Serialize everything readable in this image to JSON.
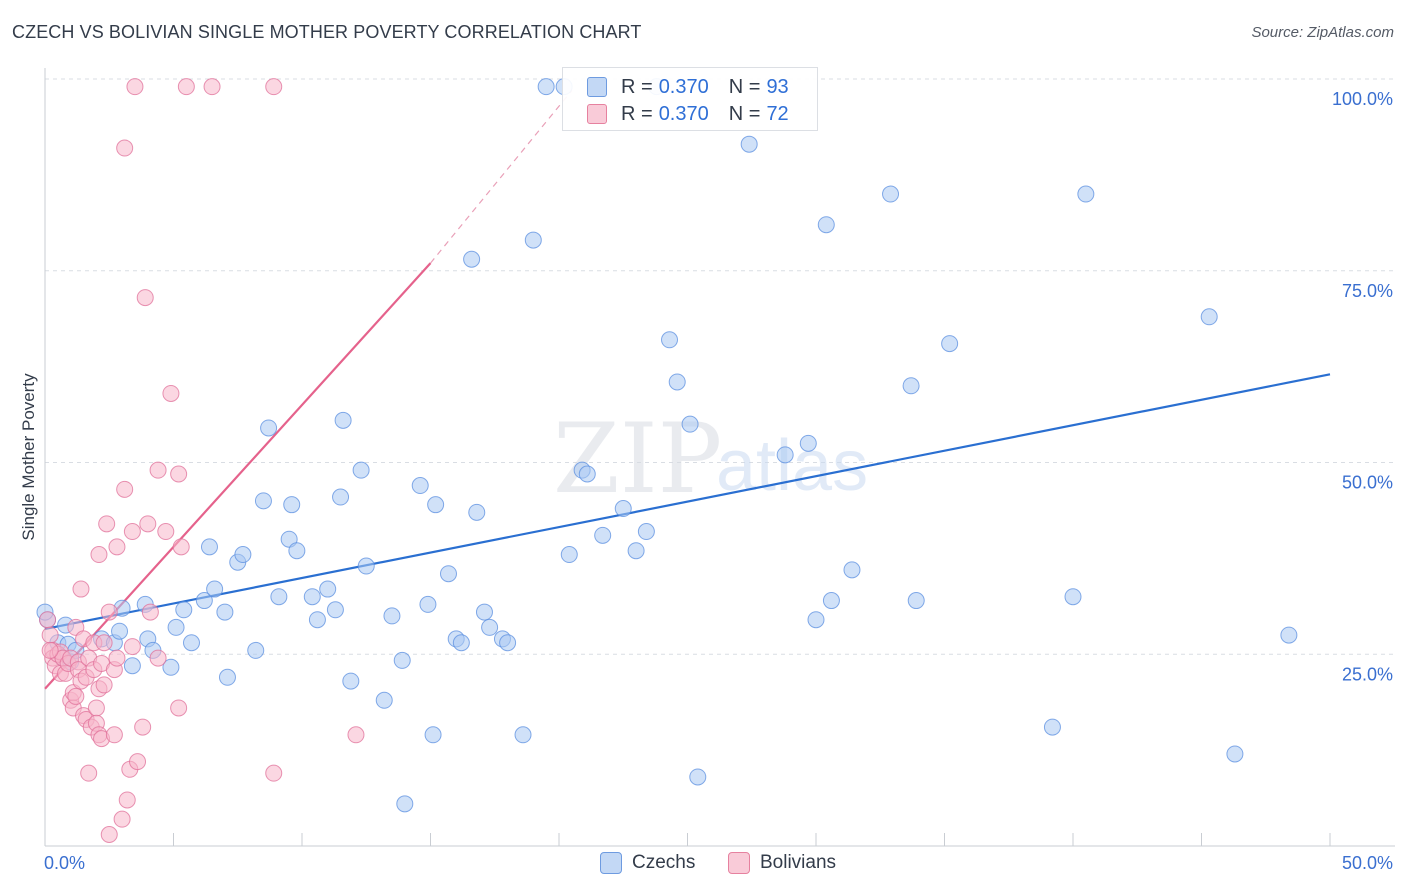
{
  "header": {
    "title": "CZECH VS BOLIVIAN SINGLE MOTHER POVERTY CORRELATION CHART",
    "source": "Source: ZipAtlas.com"
  },
  "watermark": {
    "zip": "ZIP",
    "atlas": "atlas"
  },
  "legend_top": {
    "rows": [
      {
        "r_label": "R =",
        "r_value": "0.370",
        "n_label": "N =",
        "n_value": "93",
        "color": "#a9c8f2"
      },
      {
        "r_label": "R =",
        "r_value": "0.370",
        "n_label": "N =",
        "n_value": "72",
        "color": "#f7b7ca"
      }
    ]
  },
  "legend_bottom": {
    "czechs": "Czechs",
    "bolivians": "Bolivians"
  },
  "chart_data": {
    "type": "scatter",
    "title": "CZECH VS BOLIVIAN SINGLE MOTHER POVERTY CORRELATION CHART",
    "xlabel": "",
    "ylabel": "Single Mother Poverty",
    "xlim": [
      0,
      50
    ],
    "ylim": [
      0,
      100
    ],
    "x_tick_labels": [
      "0.0%",
      "50.0%"
    ],
    "y_tick_values": [
      25,
      50,
      75,
      100
    ],
    "y_tick_labels": [
      "25.0%",
      "50.0%",
      "75.0%",
      "100.0%"
    ],
    "grid": true,
    "legend_position": "top-center",
    "series": [
      {
        "name": "Czechs",
        "color": "#5b8fe0",
        "fill": "#a9c8f2",
        "trend": {
          "x": [
            0,
            50
          ],
          "y": [
            28.3,
            61.5
          ]
        },
        "points": [
          [
            0.1,
            29.5
          ],
          [
            0.5,
            26.5
          ],
          [
            0.7,
            24.5
          ],
          [
            0.8,
            28.8
          ],
          [
            0.9,
            26.3
          ],
          [
            1.0,
            24.0
          ],
          [
            1.2,
            25.5
          ],
          [
            2.2,
            27.0
          ],
          [
            2.7,
            26.5
          ],
          [
            2.9,
            28.0
          ],
          [
            3.0,
            31.0
          ],
          [
            3.4,
            23.5
          ],
          [
            3.9,
            31.5
          ],
          [
            4.0,
            27.0
          ],
          [
            4.2,
            25.5
          ],
          [
            4.9,
            23.3
          ],
          [
            5.1,
            28.5
          ],
          [
            5.4,
            30.8
          ],
          [
            5.7,
            26.5
          ],
          [
            6.2,
            32.0
          ],
          [
            6.4,
            39.0
          ],
          [
            6.6,
            33.5
          ],
          [
            7.0,
            30.5
          ],
          [
            7.1,
            22.0
          ],
          [
            7.5,
            37.0
          ],
          [
            7.7,
            38.0
          ],
          [
            8.2,
            25.5
          ],
          [
            8.5,
            45.0
          ],
          [
            8.7,
            54.5
          ],
          [
            9.1,
            32.5
          ],
          [
            9.5,
            40.0
          ],
          [
            9.6,
            44.5
          ],
          [
            9.8,
            38.5
          ],
          [
            10.4,
            32.5
          ],
          [
            10.6,
            29.5
          ],
          [
            11.0,
            33.5
          ],
          [
            11.3,
            30.8
          ],
          [
            11.5,
            45.5
          ],
          [
            11.6,
            55.5
          ],
          [
            11.9,
            21.5
          ],
          [
            12.3,
            49.0
          ],
          [
            12.5,
            36.5
          ],
          [
            13.2,
            19.0
          ],
          [
            13.5,
            30.0
          ],
          [
            13.9,
            24.2
          ],
          [
            14.0,
            5.5
          ],
          [
            14.6,
            47.0
          ],
          [
            14.9,
            31.5
          ],
          [
            15.1,
            14.5
          ],
          [
            15.2,
            44.5
          ],
          [
            15.7,
            35.5
          ],
          [
            16.0,
            27.0
          ],
          [
            16.2,
            26.5
          ],
          [
            16.6,
            76.5
          ],
          [
            16.8,
            43.5
          ],
          [
            17.1,
            30.5
          ],
          [
            17.3,
            28.5
          ],
          [
            17.8,
            27.0
          ],
          [
            18.0,
            26.5
          ],
          [
            18.6,
            14.5
          ],
          [
            19.0,
            79.0
          ],
          [
            19.5,
            99.0
          ],
          [
            20.2,
            99.0
          ],
          [
            20.4,
            38.0
          ],
          [
            20.9,
            49.0
          ],
          [
            21.1,
            48.5
          ],
          [
            21.7,
            40.5
          ],
          [
            22.5,
            44.0
          ],
          [
            23.0,
            38.5
          ],
          [
            23.4,
            41.0
          ],
          [
            23.8,
            99.0
          ],
          [
            24.3,
            66.0
          ],
          [
            24.6,
            60.5
          ],
          [
            25.1,
            55.0
          ],
          [
            25.4,
            9.0
          ],
          [
            27.4,
            91.5
          ],
          [
            28.8,
            51.0
          ],
          [
            29.7,
            52.5
          ],
          [
            30.0,
            29.5
          ],
          [
            30.4,
            81.0
          ],
          [
            30.6,
            32.0
          ],
          [
            31.4,
            36.0
          ],
          [
            32.9,
            85.0
          ],
          [
            33.7,
            60.0
          ],
          [
            33.9,
            32.0
          ],
          [
            35.2,
            65.5
          ],
          [
            39.2,
            15.5
          ],
          [
            40.0,
            32.5
          ],
          [
            40.5,
            85.0
          ],
          [
            45.3,
            69.0
          ],
          [
            46.3,
            12.0
          ],
          [
            48.4,
            27.5
          ],
          [
            0.0,
            30.5
          ]
        ]
      },
      {
        "name": "Bolivians",
        "color": "#e0709a",
        "fill": "#f7b7ca",
        "trend": {
          "x": [
            0,
            15
          ],
          "y": [
            20.5,
            76.0
          ]
        },
        "trend_dashed": {
          "x": [
            15,
            20.5
          ],
          "y": [
            76.0,
            98.5
          ]
        },
        "points": [
          [
            0.1,
            29.5
          ],
          [
            0.2,
            27.5
          ],
          [
            0.3,
            25.5
          ],
          [
            0.3,
            24.5
          ],
          [
            0.4,
            23.5
          ],
          [
            0.5,
            25.0
          ],
          [
            0.6,
            22.5
          ],
          [
            0.6,
            25.3
          ],
          [
            0.7,
            24.5
          ],
          [
            0.8,
            22.5
          ],
          [
            0.9,
            23.8
          ],
          [
            1.0,
            24.5
          ],
          [
            1.0,
            19.0
          ],
          [
            1.1,
            20.0
          ],
          [
            1.1,
            18.0
          ],
          [
            1.2,
            28.5
          ],
          [
            1.2,
            19.5
          ],
          [
            1.3,
            24.0
          ],
          [
            1.3,
            23.0
          ],
          [
            1.4,
            33.5
          ],
          [
            1.4,
            21.5
          ],
          [
            1.5,
            27.0
          ],
          [
            1.5,
            17.0
          ],
          [
            1.6,
            16.5
          ],
          [
            1.6,
            22.0
          ],
          [
            1.7,
            24.5
          ],
          [
            1.7,
            9.5
          ],
          [
            1.8,
            15.5
          ],
          [
            1.9,
            26.5
          ],
          [
            1.9,
            23.0
          ],
          [
            2.0,
            18.0
          ],
          [
            2.0,
            16.0
          ],
          [
            2.1,
            38.0
          ],
          [
            2.1,
            20.5
          ],
          [
            2.1,
            14.5
          ],
          [
            2.2,
            23.8
          ],
          [
            2.2,
            14.0
          ],
          [
            2.3,
            26.5
          ],
          [
            2.3,
            21.0
          ],
          [
            2.4,
            42.0
          ],
          [
            2.5,
            30.5
          ],
          [
            2.5,
            1.5
          ],
          [
            2.7,
            23.0
          ],
          [
            2.7,
            14.5
          ],
          [
            2.8,
            39.0
          ],
          [
            2.8,
            24.5
          ],
          [
            3.0,
            3.5
          ],
          [
            3.1,
            46.5
          ],
          [
            3.1,
            91.0
          ],
          [
            3.2,
            6.0
          ],
          [
            3.3,
            10.0
          ],
          [
            3.4,
            26.0
          ],
          [
            3.4,
            41.0
          ],
          [
            3.5,
            99.0
          ],
          [
            3.6,
            11.0
          ],
          [
            3.8,
            15.5
          ],
          [
            3.9,
            71.5
          ],
          [
            4.0,
            42.0
          ],
          [
            4.1,
            30.5
          ],
          [
            4.4,
            24.5
          ],
          [
            4.4,
            49.0
          ],
          [
            4.7,
            41.0
          ],
          [
            4.9,
            59.0
          ],
          [
            5.2,
            48.5
          ],
          [
            5.2,
            18.0
          ],
          [
            5.3,
            39.0
          ],
          [
            5.5,
            99.0
          ],
          [
            6.5,
            99.0
          ],
          [
            8.9,
            9.5
          ],
          [
            8.9,
            99.0
          ],
          [
            12.1,
            14.5
          ],
          [
            0.2,
            25.5
          ]
        ]
      }
    ]
  }
}
